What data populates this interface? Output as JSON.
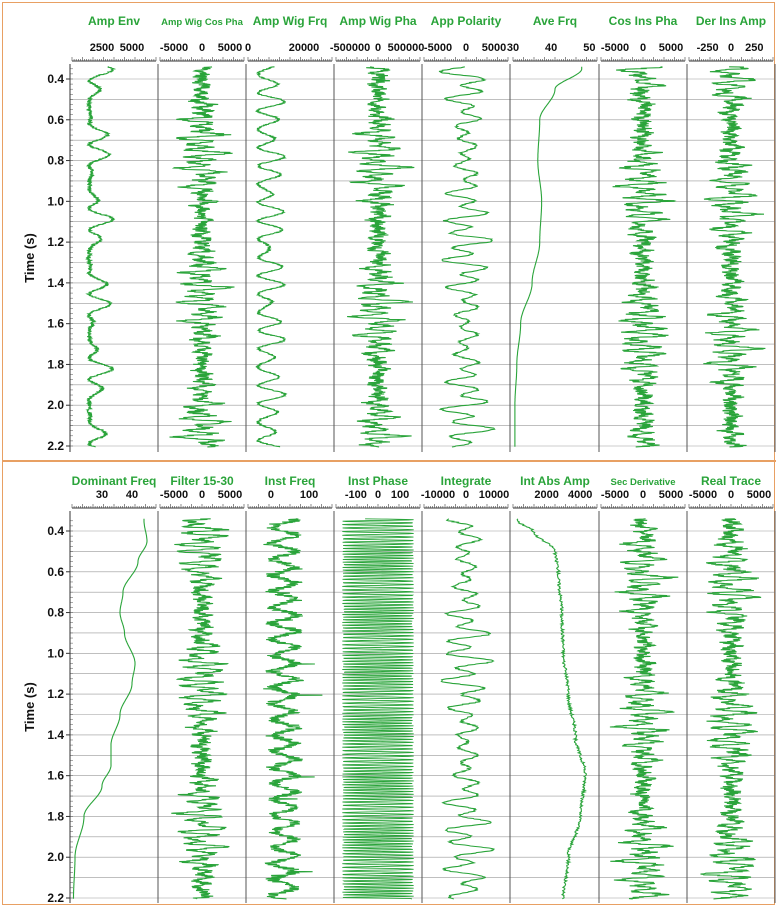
{
  "panels": [
    {
      "ylabel": "Time (s)",
      "yticks": [
        "0.4",
        "0.6",
        "0.8",
        "1.0",
        "1.2",
        "1.4",
        "1.6",
        "1.8",
        "2.0",
        "2.2"
      ],
      "tracks": [
        {
          "title": "Amp Env",
          "ticks": [
            "2500",
            "5000"
          ],
          "range": [
            0,
            7000
          ],
          "ticks_num": [
            2500,
            5000
          ],
          "kind": "envelope",
          "seed": 11
        },
        {
          "title": "Amp Wig Cos Pha",
          "ticks": [
            "-5000",
            "0",
            "5000"
          ],
          "range": [
            -7500,
            7500
          ],
          "ticks_num": [
            -5000,
            0,
            5000
          ],
          "kind": "wiggle",
          "seed": 12
        },
        {
          "title": "Amp Wig Frq",
          "ticks": [
            "0",
            "20000"
          ],
          "range": [
            0,
            30000
          ],
          "ticks_num": [
            0,
            20000
          ],
          "kind": "posenv",
          "seed": 13
        },
        {
          "title": "Amp Wig Pha",
          "ticks": [
            "-500000",
            "0",
            "500000"
          ],
          "range": [
            -750000,
            750000
          ],
          "ticks_num": [
            -500000,
            0,
            500000
          ],
          "kind": "wiggle",
          "seed": 14
        },
        {
          "title": "App Polarity",
          "ticks": [
            "-5000",
            "0",
            "5000"
          ],
          "range": [
            -7500,
            7500
          ],
          "ticks_num": [
            -5000,
            0,
            5000
          ],
          "kind": "smoothwiggle",
          "seed": 15
        },
        {
          "title": "Ave Frq",
          "ticks": [
            "30",
            "40",
            "50"
          ],
          "range": [
            30,
            52
          ],
          "ticks_num": [
            30,
            40,
            50
          ],
          "kind": "smooth",
          "seed": 16,
          "curve": [
            [
              0.35,
              48
            ],
            [
              0.45,
              41
            ],
            [
              0.6,
              37
            ],
            [
              0.8,
              36.5
            ],
            [
              1.0,
              37.5
            ],
            [
              1.2,
              37
            ],
            [
              1.4,
              35
            ],
            [
              1.6,
              32
            ],
            [
              1.8,
              31
            ],
            [
              2.0,
              30.5
            ],
            [
              2.2,
              30.5
            ]
          ]
        },
        {
          "title": "Cos Ins Pha",
          "ticks": [
            "-5000",
            "0",
            "5000"
          ],
          "range": [
            -7500,
            7500
          ],
          "ticks_num": [
            -5000,
            0,
            5000
          ],
          "kind": "wiggle",
          "seed": 17
        },
        {
          "title": "Der Ins Amp",
          "ticks": [
            "-250",
            "0",
            "250"
          ],
          "range": [
            -450,
            450
          ],
          "ticks_num": [
            -250,
            0,
            250
          ],
          "kind": "wiggle",
          "seed": 18
        }
      ]
    },
    {
      "ylabel": "Time (s)",
      "yticks": [
        "0.4",
        "0.6",
        "0.8",
        "1.0",
        "1.2",
        "1.4",
        "1.6",
        "1.8",
        "2.0",
        "2.2"
      ],
      "tracks": [
        {
          "title": "Dominant Freq",
          "ticks": [
            "30",
            "40"
          ],
          "range": [
            20,
            48
          ],
          "ticks_num": [
            30,
            40
          ],
          "kind": "smooth",
          "seed": 21,
          "curve": [
            [
              0.35,
              44
            ],
            [
              0.45,
              45
            ],
            [
              0.55,
              42
            ],
            [
              0.7,
              37
            ],
            [
              0.8,
              36
            ],
            [
              0.9,
              37.5
            ],
            [
              1.05,
              41
            ],
            [
              1.15,
              40
            ],
            [
              1.3,
              36
            ],
            [
              1.45,
              33
            ],
            [
              1.55,
              33
            ],
            [
              1.65,
              30
            ],
            [
              1.8,
              24
            ],
            [
              2.0,
              21
            ],
            [
              2.2,
              20.5
            ]
          ]
        },
        {
          "title": "Filter 15-30",
          "ticks": [
            "-5000",
            "0",
            "5000"
          ],
          "range": [
            -7500,
            7500
          ],
          "ticks_num": [
            -5000,
            0,
            5000
          ],
          "kind": "wiggle",
          "seed": 22
        },
        {
          "title": "Inst Freq",
          "ticks": [
            "0",
            "100"
          ],
          "range": [
            -60,
            160
          ],
          "ticks_num": [
            0,
            100
          ],
          "kind": "instfreq",
          "seed": 23
        },
        {
          "title": "Inst Phase",
          "ticks": [
            "-100",
            "0",
            "100"
          ],
          "range": [
            -190,
            190
          ],
          "ticks_num": [
            -100,
            0,
            100
          ],
          "kind": "phase",
          "seed": 24
        },
        {
          "title": "Integrate",
          "ticks": [
            "-10000",
            "0",
            "10000"
          ],
          "range": [
            -15000,
            15000
          ],
          "ticks_num": [
            -10000,
            0,
            10000
          ],
          "kind": "smoothwiggle",
          "seed": 25
        },
        {
          "title": "Int Abs Amp",
          "ticks": [
            "2000",
            "4000"
          ],
          "range": [
            0,
            5000
          ],
          "ticks_num": [
            2000,
            4000
          ],
          "kind": "smooth",
          "seed": 26,
          "curve": [
            [
              0.35,
              300
            ],
            [
              0.4,
              1200
            ],
            [
              0.5,
              2500
            ],
            [
              0.6,
              2700
            ],
            [
              0.8,
              2900
            ],
            [
              1.0,
              3000
            ],
            [
              1.2,
              3300
            ],
            [
              1.4,
              3700
            ],
            [
              1.6,
              4300
            ],
            [
              1.8,
              4000
            ],
            [
              2.0,
              3300
            ],
            [
              2.2,
              3000
            ]
          ]
        },
        {
          "title": "Sec Derivative",
          "ticks": [
            "-5000",
            "0",
            "5000"
          ],
          "range": [
            -7500,
            7500
          ],
          "ticks_num": [
            -5000,
            0,
            5000
          ],
          "kind": "wiggle",
          "seed": 27
        },
        {
          "title": "Real Trace",
          "ticks": [
            "-5000",
            "0",
            "5000"
          ],
          "range": [
            -7500,
            7500
          ],
          "ticks_num": [
            -5000,
            0,
            5000
          ],
          "kind": "wiggle",
          "seed": 28
        }
      ]
    }
  ],
  "chart_data": [
    {
      "type": "line",
      "ylabel": "Time (s)",
      "ylim": [
        2.2,
        0.35
      ],
      "series": [
        {
          "name": "Amp Env",
          "xlim": [
            0,
            7000
          ]
        },
        {
          "name": "Amp Wig Cos Pha",
          "xlim": [
            -7500,
            7500
          ]
        },
        {
          "name": "Amp Wig Frq",
          "xlim": [
            0,
            30000
          ]
        },
        {
          "name": "Amp Wig Pha",
          "xlim": [
            -750000,
            750000
          ]
        },
        {
          "name": "App Polarity",
          "xlim": [
            -7500,
            7500
          ]
        },
        {
          "name": "Ave Frq",
          "xlim": [
            30,
            52
          ],
          "y": [
            0.35,
            0.45,
            0.6,
            0.8,
            1.0,
            1.2,
            1.4,
            1.6,
            1.8,
            2.0,
            2.2
          ],
          "x": [
            48,
            41,
            37,
            36.5,
            37.5,
            37,
            35,
            32,
            31,
            30.5,
            30.5
          ]
        },
        {
          "name": "Cos Ins Pha",
          "xlim": [
            -7500,
            7500
          ]
        },
        {
          "name": "Der Ins Amp",
          "xlim": [
            -450,
            450
          ]
        }
      ],
      "grid": true
    },
    {
      "type": "line",
      "ylabel": "Time (s)",
      "ylim": [
        2.2,
        0.35
      ],
      "series": [
        {
          "name": "Dominant Freq",
          "xlim": [
            20,
            48
          ],
          "y": [
            0.35,
            0.45,
            0.55,
            0.7,
            0.8,
            0.9,
            1.05,
            1.15,
            1.3,
            1.45,
            1.55,
            1.65,
            1.8,
            2.0,
            2.2
          ],
          "x": [
            44,
            45,
            42,
            37,
            36,
            37.5,
            41,
            40,
            36,
            33,
            33,
            30,
            24,
            21,
            20.5
          ]
        },
        {
          "name": "Filter 15-30",
          "xlim": [
            -7500,
            7500
          ]
        },
        {
          "name": "Inst Freq",
          "xlim": [
            -60,
            160
          ]
        },
        {
          "name": "Inst Phase",
          "xlim": [
            -190,
            190
          ]
        },
        {
          "name": "Integrate",
          "xlim": [
            -15000,
            15000
          ]
        },
        {
          "name": "Int Abs Amp",
          "xlim": [
            0,
            5000
          ],
          "y": [
            0.35,
            0.4,
            0.5,
            0.6,
            0.8,
            1.0,
            1.2,
            1.4,
            1.6,
            1.8,
            2.0,
            2.2
          ],
          "x": [
            300,
            1200,
            2500,
            2700,
            2900,
            3000,
            3300,
            3700,
            4300,
            4000,
            3300,
            3000
          ]
        },
        {
          "name": "Sec Derivative",
          "xlim": [
            -7500,
            7500
          ]
        },
        {
          "name": "Real Trace",
          "xlim": [
            -7500,
            7500
          ]
        }
      ],
      "grid": true
    }
  ],
  "colors": {
    "trace": "#2aa43a",
    "title": "#2aa43a",
    "grid": "#999999",
    "border": "#e8a063"
  }
}
